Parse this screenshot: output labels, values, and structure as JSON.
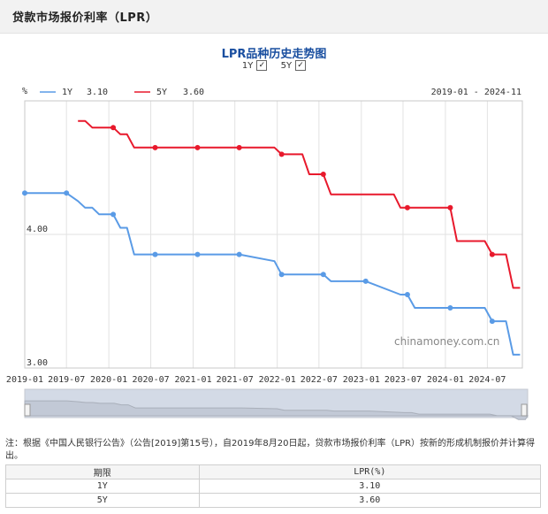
{
  "header": {
    "title": "贷款市场报价利率（LPR）"
  },
  "chart_title": "LPR品种历史走势图",
  "toggles": [
    {
      "label": "1Y",
      "checked": true
    },
    {
      "label": "5Y",
      "checked": true
    }
  ],
  "watermark": "chinamoney.com.cn",
  "note": "注：根据《中国人民银行公告》（公告[2019]第15号），自2019年8月20日起，贷款市场报价利率（LPR）按新的形成机制报价并计算得出。",
  "table": {
    "headers": [
      "期限",
      "LPR(%)"
    ],
    "rows": [
      {
        "term": "1Y",
        "rate": "3.10"
      },
      {
        "term": "5Y",
        "rate": "3.60"
      }
    ]
  },
  "chart_data": {
    "type": "line",
    "ylabel": "%",
    "range_text": "2019-01 - 2024-11",
    "x_range": [
      "2019-01-01",
      "2024-11-30"
    ],
    "y_range": [
      3.0,
      5.0
    ],
    "y_ticks": [
      3.0,
      4.0
    ],
    "y_tick_labels": [
      "3.00",
      "4.00"
    ],
    "x_ticks": [
      "2019-01-01",
      "2019-07-01",
      "2020-01-01",
      "2020-07-01",
      "2021-01-01",
      "2021-07-01",
      "2022-01-01",
      "2022-07-01",
      "2023-01-01",
      "2023-07-01",
      "2024-01-01",
      "2024-07-01"
    ],
    "x_tick_labels": [
      "2019-01",
      "2019-07",
      "2020-01",
      "2020-07",
      "2021-01",
      "2021-07",
      "2022-01",
      "2022-07",
      "2023-01",
      "2023-07",
      "2024-01",
      "2024-07"
    ],
    "grid": true,
    "legend_position": "top-left",
    "series": [
      {
        "name": "1Y",
        "legend_value": "3.10",
        "color": "#5a9be6",
        "points": [
          [
            "2019-01-01",
            4.31
          ],
          [
            "2019-07-01",
            4.31
          ],
          [
            "2019-08-20",
            4.25
          ],
          [
            "2019-09-20",
            4.2
          ],
          [
            "2019-10-21",
            4.2
          ],
          [
            "2019-11-20",
            4.15
          ],
          [
            "2019-12-20",
            4.15
          ],
          [
            "2020-01-20",
            4.15
          ],
          [
            "2020-02-20",
            4.05
          ],
          [
            "2020-03-20",
            4.05
          ],
          [
            "2020-04-20",
            3.85
          ],
          [
            "2020-07-20",
            3.85
          ],
          [
            "2021-01-20",
            3.85
          ],
          [
            "2021-07-20",
            3.85
          ],
          [
            "2021-12-20",
            3.8
          ],
          [
            "2022-01-20",
            3.7
          ],
          [
            "2022-07-20",
            3.7
          ],
          [
            "2022-08-22",
            3.65
          ],
          [
            "2023-01-20",
            3.65
          ],
          [
            "2023-06-20",
            3.55
          ],
          [
            "2023-07-20",
            3.55
          ],
          [
            "2023-08-21",
            3.45
          ],
          [
            "2024-01-22",
            3.45
          ],
          [
            "2024-06-20",
            3.45
          ],
          [
            "2024-07-22",
            3.35
          ],
          [
            "2024-09-20",
            3.35
          ],
          [
            "2024-10-21",
            3.1
          ],
          [
            "2024-11-20",
            3.1
          ]
        ],
        "markers": [
          [
            "2019-01-01",
            4.31
          ],
          [
            "2019-07-01",
            4.31
          ],
          [
            "2020-01-20",
            4.15
          ],
          [
            "2020-07-20",
            3.85
          ],
          [
            "2021-01-20",
            3.85
          ],
          [
            "2021-07-20",
            3.85
          ],
          [
            "2022-01-20",
            3.7
          ],
          [
            "2022-07-20",
            3.7
          ],
          [
            "2023-01-20",
            3.65
          ],
          [
            "2023-07-20",
            3.55
          ],
          [
            "2024-01-22",
            3.45
          ],
          [
            "2024-07-22",
            3.35
          ]
        ]
      },
      {
        "name": "5Y",
        "legend_value": "3.60",
        "color": "#e8192c",
        "points": [
          [
            "2019-08-20",
            4.85
          ],
          [
            "2019-09-20",
            4.85
          ],
          [
            "2019-10-21",
            4.8
          ],
          [
            "2019-12-20",
            4.8
          ],
          [
            "2020-01-20",
            4.8
          ],
          [
            "2020-02-20",
            4.75
          ],
          [
            "2020-03-20",
            4.75
          ],
          [
            "2020-04-20",
            4.65
          ],
          [
            "2020-07-20",
            4.65
          ],
          [
            "2021-01-20",
            4.65
          ],
          [
            "2021-07-20",
            4.65
          ],
          [
            "2021-12-20",
            4.65
          ],
          [
            "2022-01-20",
            4.6
          ],
          [
            "2022-04-20",
            4.6
          ],
          [
            "2022-05-20",
            4.45
          ],
          [
            "2022-07-20",
            4.45
          ],
          [
            "2022-08-22",
            4.3
          ],
          [
            "2023-01-20",
            4.3
          ],
          [
            "2023-05-22",
            4.3
          ],
          [
            "2023-06-20",
            4.2
          ],
          [
            "2023-07-20",
            4.2
          ],
          [
            "2024-01-22",
            4.2
          ],
          [
            "2024-02-20",
            3.95
          ],
          [
            "2024-06-20",
            3.95
          ],
          [
            "2024-07-22",
            3.85
          ],
          [
            "2024-09-20",
            3.85
          ],
          [
            "2024-10-21",
            3.6
          ],
          [
            "2024-11-20",
            3.6
          ]
        ],
        "markers": [
          [
            "2020-01-20",
            4.8
          ],
          [
            "2020-07-20",
            4.65
          ],
          [
            "2021-01-20",
            4.65
          ],
          [
            "2021-07-20",
            4.65
          ],
          [
            "2022-01-20",
            4.6
          ],
          [
            "2022-07-20",
            4.45
          ],
          [
            "2023-07-20",
            4.2
          ],
          [
            "2024-01-22",
            4.2
          ],
          [
            "2024-07-22",
            3.85
          ]
        ]
      }
    ]
  }
}
